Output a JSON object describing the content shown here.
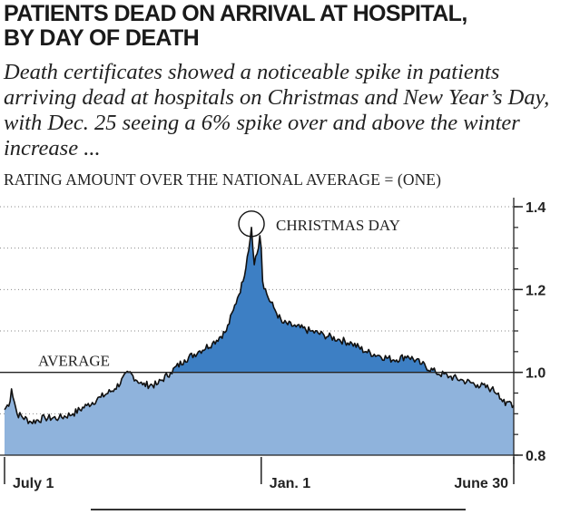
{
  "header": {
    "headline_line1": "PATIENTS DEAD ON ARRIVAL AT HOSPITAL,",
    "headline_line2": "BY DAY OF DEATH",
    "dek": "Death certificates showed a noticeable spike in patients arriving dead at hospitals on Christmas and New Year’s Day, with Dec. 25 seeing a 6% spike over and above the winter increase ...",
    "scale_note": "RATING AMOUNT OVER THE NATIONAL AVERAGE = (ONE)"
  },
  "colors": {
    "below_average_fill": "#8fb3dc",
    "above_average_fill": "#3d7fc4",
    "line": "#111111",
    "grid": "#8a8a8a"
  },
  "chart_data": {
    "type": "area",
    "title": "PATIENTS DEAD ON ARRIVAL AT HOSPITAL, BY DAY OF DEATH",
    "ylabel": "RATING AMOUNT OVER THE NATIONAL AVERAGE = (ONE)",
    "xlabel": "",
    "ylim": [
      0.8,
      1.4
    ],
    "y_ticks": [
      "1.4",
      "1.2",
      "1.0",
      "0.8"
    ],
    "y_tick_values": [
      1.4,
      1.2,
      1.0,
      0.8
    ],
    "x_tick_labels": [
      "July 1",
      "Jan. 1",
      "June 30"
    ],
    "x_tick_days": [
      1,
      185,
      366
    ],
    "grid": "dotted horizontal",
    "reference_line": {
      "value": 1.0,
      "label": "AVERAGE"
    },
    "annotations": [
      {
        "label": "CHRISTMAS DAY",
        "day": 178,
        "value": 1.35
      }
    ],
    "series": [
      {
        "x": [
          1,
          5,
          6,
          10,
          20,
          30,
          40,
          50,
          60,
          70,
          80,
          90,
          100,
          110,
          120,
          130,
          140,
          150,
          160,
          165,
          168,
          172,
          175,
          177,
          178,
          179,
          180,
          181,
          183,
          184,
          185,
          186,
          190,
          195,
          200,
          210,
          220,
          230,
          240,
          250,
          260,
          270,
          280,
          290,
          300,
          310,
          320,
          330,
          340,
          350,
          355,
          360,
          363,
          366
        ],
        "values": [
          0.91,
          0.93,
          0.96,
          0.9,
          0.88,
          0.89,
          0.89,
          0.9,
          0.92,
          0.94,
          0.96,
          1.0,
          0.97,
          0.97,
          1.0,
          1.03,
          1.05,
          1.07,
          1.1,
          1.15,
          1.18,
          1.22,
          1.28,
          1.32,
          1.35,
          1.3,
          1.26,
          1.28,
          1.3,
          1.33,
          1.3,
          1.22,
          1.18,
          1.15,
          1.12,
          1.11,
          1.1,
          1.09,
          1.08,
          1.07,
          1.05,
          1.04,
          1.03,
          1.04,
          1.02,
          1.0,
          0.99,
          0.98,
          0.97,
          0.96,
          0.95,
          0.92,
          0.93,
          0.92
        ]
      }
    ]
  }
}
